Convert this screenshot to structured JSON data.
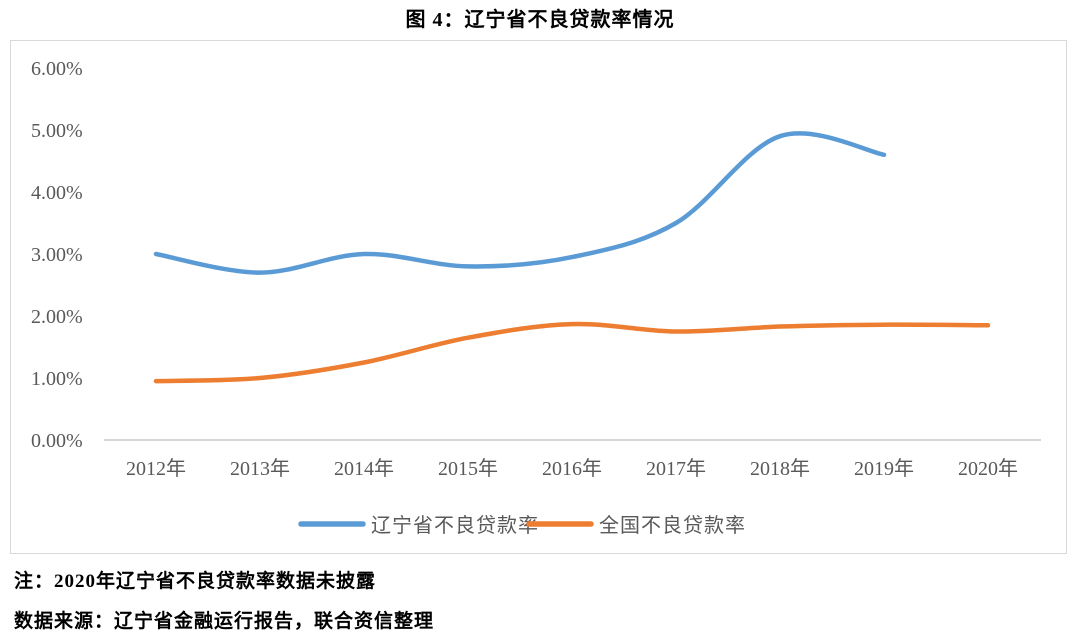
{
  "title": "图 4：辽宁省不良贷款率情况",
  "notes": {
    "note": "注：2020年辽宁省不良贷款率数据未披露",
    "source": "数据来源：辽宁省金融运行报告，联合资信整理"
  },
  "colors": {
    "liaoning_line": "#5B9BD5",
    "national_line": "#ED7D31",
    "axis_text": "#595959",
    "axis_line": "#c8c8c8",
    "frame_border": "#d9d9d9"
  },
  "chart_data": {
    "type": "line",
    "title": "图 4：辽宁省不良贷款率情况",
    "categories": [
      "2012年",
      "2013年",
      "2014年",
      "2015年",
      "2016年",
      "2017年",
      "2018年",
      "2019年",
      "2020年"
    ],
    "series": [
      {
        "name": "辽宁省不良贷款率",
        "slug": "liaoning",
        "color": "#5B9BD5",
        "values": [
          3.0,
          2.7,
          3.0,
          2.8,
          2.95,
          3.5,
          4.9,
          4.6,
          null
        ]
      },
      {
        "name": "全国不良贷款率",
        "slug": "national",
        "color": "#ED7D31",
        "values": [
          0.95,
          1.0,
          1.25,
          1.65,
          1.87,
          1.75,
          1.83,
          1.86,
          1.85
        ]
      }
    ],
    "ylim": [
      0,
      6
    ],
    "y_tick_step": 1,
    "y_tick_labels": [
      "0.00%",
      "1.00%",
      "2.00%",
      "3.00%",
      "4.00%",
      "5.00%",
      "6.00%"
    ],
    "unit": "percent",
    "grid": false,
    "smooth": true,
    "legend_position": "bottom"
  }
}
